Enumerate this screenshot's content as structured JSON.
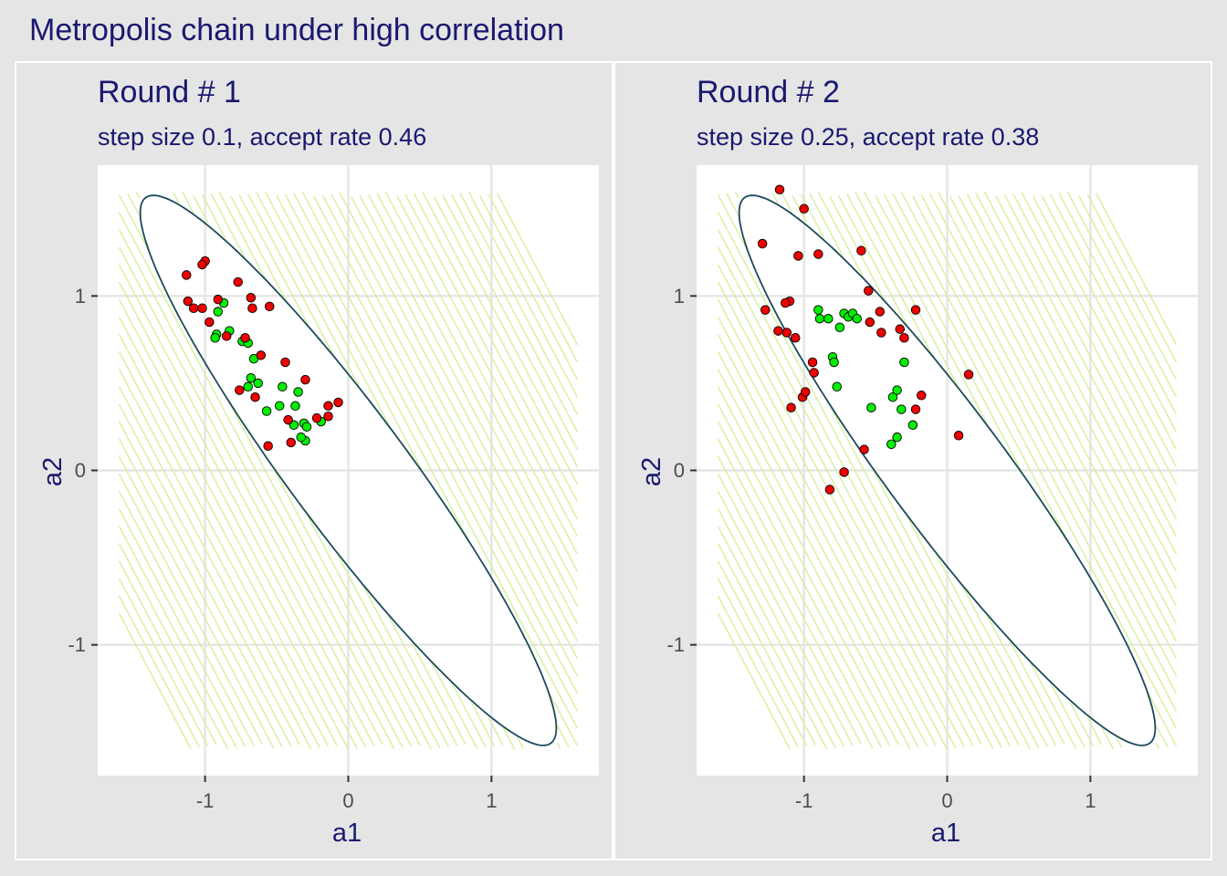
{
  "title": "Metropolis chain under high correlation",
  "colors": {
    "background": "#e5e5e5",
    "panel": "#ffffff",
    "grid": "#e6e6e6",
    "text": "#191970",
    "ellipse": "#1b4a5a",
    "hatch": "#d6ef9c",
    "accepted": "#00ee00",
    "rejected": "#ee0000"
  },
  "chart_data": [
    {
      "type": "scatter",
      "title": "Round # 1",
      "subtitle": "step size 0.1, accept rate 0.46",
      "xlabel": "a1",
      "ylabel": "a2",
      "xlim": [
        -1.75,
        1.75
      ],
      "ylim": [
        -1.75,
        1.75
      ],
      "x_ticks": [
        -1,
        0,
        1
      ],
      "y_ticks": [
        -1,
        0,
        1
      ],
      "x_tick_labels": [
        "-1",
        "0",
        "1"
      ],
      "y_tick_labels": [
        "-1",
        "0",
        "1"
      ],
      "grid": true,
      "ellipse": {
        "center": [
          0,
          0
        ],
        "semi_major": 2.11,
        "semi_minor": 0.38,
        "angle_deg": -47.5
      },
      "series": [
        {
          "status": "accepted",
          "x": [
            -0.87,
            -0.91,
            -0.83,
            -0.92,
            -0.93,
            -0.74,
            -0.7,
            -0.68,
            -0.7,
            -0.63,
            -0.66,
            -0.57,
            -0.48,
            -0.46,
            -0.37,
            -0.35,
            -0.38,
            -0.31,
            -0.29,
            -0.3,
            -0.33,
            -0.19
          ],
          "y": [
            0.96,
            0.91,
            0.8,
            0.78,
            0.76,
            0.74,
            0.73,
            0.53,
            0.48,
            0.5,
            0.64,
            0.34,
            0.37,
            0.48,
            0.37,
            0.45,
            0.26,
            0.27,
            0.25,
            0.17,
            0.19,
            0.28
          ]
        },
        {
          "status": "rejected",
          "x": [
            -1.0,
            -1.02,
            -1.13,
            -1.12,
            -1.08,
            -1.02,
            -0.97,
            -0.91,
            -0.85,
            -0.77,
            -0.68,
            -0.67,
            -0.72,
            -0.55,
            -0.61,
            -0.65,
            -0.76,
            -0.44,
            -0.42,
            -0.3,
            -0.22,
            -0.14,
            -0.14,
            -0.07,
            -0.4,
            -0.56
          ],
          "y": [
            1.2,
            1.18,
            1.12,
            0.97,
            0.93,
            0.93,
            0.85,
            0.98,
            0.77,
            1.08,
            0.99,
            0.93,
            0.76,
            0.94,
            0.66,
            0.42,
            0.46,
            0.62,
            0.29,
            0.52,
            0.3,
            0.37,
            0.31,
            0.39,
            0.16,
            0.14
          ]
        }
      ]
    },
    {
      "type": "scatter",
      "title": "Round # 2",
      "subtitle": "step size 0.25, accept rate 0.38",
      "xlabel": "a1",
      "ylabel": "a2",
      "xlim": [
        -1.75,
        1.75
      ],
      "ylim": [
        -1.75,
        1.75
      ],
      "x_ticks": [
        -1,
        0,
        1
      ],
      "y_ticks": [
        -1,
        0,
        1
      ],
      "x_tick_labels": [
        "-1",
        "0",
        "1"
      ],
      "y_tick_labels": [
        "-1",
        "0",
        "1"
      ],
      "grid": true,
      "ellipse": {
        "center": [
          0,
          0
        ],
        "semi_major": 2.11,
        "semi_minor": 0.38,
        "angle_deg": -47.5
      },
      "series": [
        {
          "status": "accepted",
          "x": [
            -0.9,
            -0.89,
            -0.83,
            -0.72,
            -0.69,
            -0.66,
            -0.63,
            -0.75,
            -0.8,
            -0.79,
            -0.77,
            -0.53,
            -0.38,
            -0.35,
            -0.3,
            -0.24,
            -0.39,
            -0.35,
            -0.32
          ],
          "y": [
            0.92,
            0.87,
            0.87,
            0.9,
            0.88,
            0.9,
            0.87,
            0.82,
            0.65,
            0.62,
            0.48,
            0.36,
            0.42,
            0.46,
            0.62,
            0.26,
            0.15,
            0.19,
            0.35
          ]
        },
        {
          "status": "rejected",
          "x": [
            -1.17,
            -1.0,
            -1.29,
            -1.04,
            -0.9,
            -0.6,
            -1.1,
            -1.13,
            -1.27,
            -1.18,
            -1.12,
            -1.06,
            -0.94,
            -0.93,
            -1.01,
            -0.99,
            -1.09,
            -0.55,
            -0.47,
            -0.54,
            -0.46,
            -0.33,
            -0.3,
            -0.22,
            -0.18,
            -0.22,
            0.15,
            0.08,
            -0.58,
            -0.72,
            -0.82
          ],
          "y": [
            1.61,
            1.5,
            1.3,
            1.23,
            1.24,
            1.26,
            0.97,
            0.96,
            0.92,
            0.8,
            0.79,
            0.76,
            0.62,
            0.56,
            0.42,
            0.45,
            0.36,
            1.03,
            0.91,
            0.85,
            0.79,
            0.81,
            0.76,
            0.92,
            0.43,
            0.35,
            0.55,
            0.2,
            0.12,
            -0.01,
            -0.11
          ]
        }
      ]
    }
  ]
}
